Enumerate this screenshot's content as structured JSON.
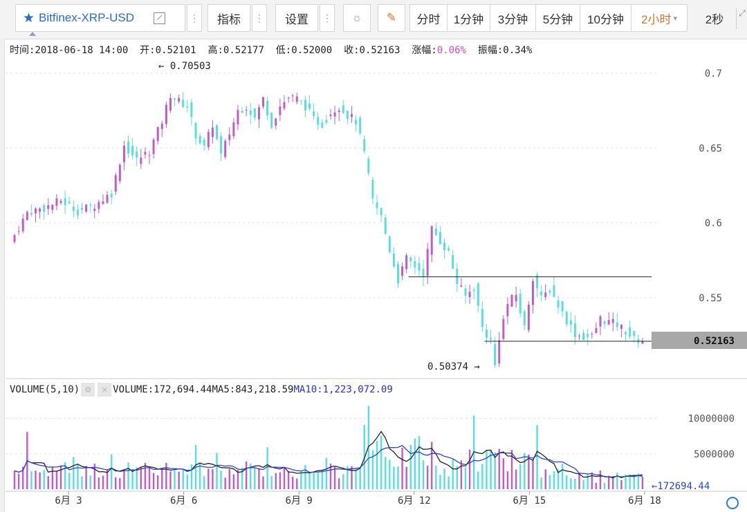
{
  "toolbar": {
    "symbol": "Bitfinex-XRP-USD",
    "indicator_label": "指标",
    "settings_label": "设置",
    "periods": [
      "分时",
      "1分钟",
      "3分钟",
      "5分钟",
      "10分钟",
      "2小时"
    ],
    "active_period": "2小时",
    "refresh": "2秒"
  },
  "info": {
    "time_label": "时间:",
    "time": "2018-06-18 14:00",
    "open_label": "开:",
    "open": "0.52101",
    "high_label": "高:",
    "high": "0.52177",
    "low_label": "低:",
    "low": "0.52000",
    "close_label": "收:",
    "close": "0.52163",
    "change_label": "涨幅:",
    "change": "0.06%",
    "amp_label": "振幅:",
    "amp": "0.34%"
  },
  "volume_info": {
    "name": "VOLUME(5,10)",
    "volume_label": "VOLUME:",
    "volume": "172,694.44",
    "ma5_label": "MA5:",
    "ma5": "843,218.59",
    "ma10_label": "MA10:",
    "ma10": "1,223,072.09"
  },
  "chart_data": {
    "type": "candlestick",
    "price_axis": {
      "ticks": [
        "0.7",
        "0.65",
        "0.6",
        "0.55"
      ],
      "min": 0.5,
      "max": 0.71
    },
    "volume_axis": {
      "ticks": [
        "10000000",
        "5000000"
      ],
      "max": 12000000
    },
    "x_ticks": [
      "6月 3",
      "6月 6",
      "6月 9",
      "6月 12",
      "6月 15",
      "6月 18"
    ],
    "high_marker": "← 0.70503",
    "low_marker": "0.50374 →",
    "last_price": "0.52163",
    "last_volume": "←172694.44",
    "support_line": 0.521,
    "resistance_line": 0.564,
    "close_path": [
      [
        0,
        0.587
      ],
      [
        4,
        0.607
      ],
      [
        8,
        0.61
      ],
      [
        12,
        0.615
      ],
      [
        16,
        0.608
      ],
      [
        20,
        0.612
      ],
      [
        24,
        0.62
      ],
      [
        27,
        0.652
      ],
      [
        30,
        0.642
      ],
      [
        33,
        0.648
      ],
      [
        36,
        0.668
      ],
      [
        38,
        0.686
      ],
      [
        40,
        0.681
      ],
      [
        42,
        0.678
      ],
      [
        44,
        0.659
      ],
      [
        46,
        0.65
      ],
      [
        48,
        0.666
      ],
      [
        50,
        0.645
      ],
      [
        52,
        0.66
      ],
      [
        54,
        0.675
      ],
      [
        56,
        0.678
      ],
      [
        58,
        0.67
      ],
      [
        60,
        0.683
      ],
      [
        62,
        0.666
      ],
      [
        64,
        0.678
      ],
      [
        66,
        0.684
      ],
      [
        68,
        0.683
      ],
      [
        70,
        0.678
      ],
      [
        72,
        0.669
      ],
      [
        74,
        0.666
      ],
      [
        76,
        0.674
      ],
      [
        78,
        0.678
      ],
      [
        80,
        0.672
      ],
      [
        82,
        0.668
      ],
      [
        84,
        0.646
      ],
      [
        86,
        0.615
      ],
      [
        88,
        0.604
      ],
      [
        90,
        0.582
      ],
      [
        92,
        0.562
      ],
      [
        94,
        0.576
      ],
      [
        96,
        0.571
      ],
      [
        98,
        0.566
      ],
      [
        100,
        0.596
      ],
      [
        102,
        0.588
      ],
      [
        104,
        0.58
      ],
      [
        106,
        0.56
      ],
      [
        108,
        0.551
      ],
      [
        110,
        0.557
      ],
      [
        112,
        0.53
      ],
      [
        114,
        0.521
      ],
      [
        115,
        0.5045
      ],
      [
        116,
        0.524
      ],
      [
        118,
        0.546
      ],
      [
        120,
        0.552
      ],
      [
        122,
        0.53
      ],
      [
        124,
        0.564
      ],
      [
        126,
        0.549
      ],
      [
        128,
        0.556
      ],
      [
        130,
        0.545
      ],
      [
        132,
        0.535
      ],
      [
        134,
        0.526
      ],
      [
        136,
        0.524
      ],
      [
        138,
        0.524
      ],
      [
        140,
        0.536
      ],
      [
        142,
        0.534
      ],
      [
        144,
        0.532
      ],
      [
        146,
        0.528
      ],
      [
        148,
        0.522
      ],
      [
        150,
        0.5216
      ]
    ],
    "volume_bars_count": 150
  },
  "colors": {
    "up": "#c05bc9",
    "down": "#58dede",
    "ma5": "#222222",
    "ma10": "#2b45c8"
  }
}
